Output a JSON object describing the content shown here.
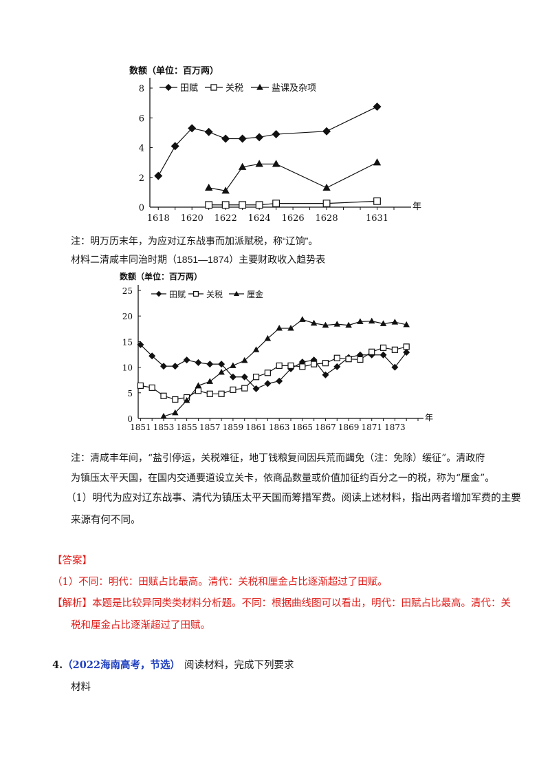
{
  "chart_data": [
    {
      "type": "line",
      "title": "",
      "ylabel": "数额（单位：百万两）",
      "xlabel": "年",
      "x_ticks": [
        "1618",
        "1620",
        "1622",
        "1624",
        "1626",
        "1628",
        "1631"
      ],
      "y_ticks": [
        "0",
        "2",
        "4",
        "6",
        "8"
      ],
      "xlim": [
        1617.5,
        1632
      ],
      "ylim": [
        0,
        8
      ],
      "grid": false,
      "legend_position": "top",
      "series": [
        {
          "name": "田赋",
          "marker": "filled-diamond",
          "points": [
            [
              1618,
              2.1
            ],
            [
              1619,
              4.1
            ],
            [
              1620,
              5.3
            ],
            [
              1621,
              5.05
            ],
            [
              1622,
              4.6
            ],
            [
              1623,
              4.6
            ],
            [
              1624,
              4.7
            ],
            [
              1625,
              4.9
            ],
            [
              1628,
              5.1
            ],
            [
              1631,
              6.75
            ]
          ]
        },
        {
          "name": "关税",
          "marker": "open-square",
          "points": [
            [
              1621,
              0.15
            ],
            [
              1622,
              0.15
            ],
            [
              1623,
              0.15
            ],
            [
              1624,
              0.15
            ],
            [
              1625,
              0.25
            ],
            [
              1628,
              0.25
            ],
            [
              1631,
              0.4
            ]
          ]
        },
        {
          "name": "盐课及杂项",
          "marker": "filled-triangle",
          "points": [
            [
              1621,
              1.3
            ],
            [
              1622,
              1.1
            ],
            [
              1623,
              2.7
            ],
            [
              1624,
              2.9
            ],
            [
              1625,
              2.9
            ],
            [
              1628,
              1.3
            ],
            [
              1631,
              3.0
            ]
          ]
        }
      ]
    },
    {
      "type": "line",
      "title": "",
      "ylabel": "数额（单位：百万两）",
      "xlabel": "年",
      "x_ticks": [
        "1851",
        "1853",
        "1855",
        "1857",
        "1859",
        "1861",
        "1863",
        "1865",
        "1867",
        "1869",
        "1871",
        "1873"
      ],
      "y_ticks": [
        "0",
        "5",
        "10",
        "15",
        "20",
        "25"
      ],
      "xlim": [
        1850.8,
        1875
      ],
      "ylim": [
        0,
        25
      ],
      "grid": false,
      "legend_position": "top",
      "series": [
        {
          "name": "田赋",
          "marker": "filled-diamond",
          "points": [
            [
              1851,
              14.4
            ],
            [
              1852,
              12.2
            ],
            [
              1853,
              10.2
            ],
            [
              1854,
              10.2
            ],
            [
              1855,
              11.4
            ],
            [
              1856,
              10.9
            ],
            [
              1857,
              10.6
            ],
            [
              1858,
              10.6
            ],
            [
              1859,
              8.1
            ],
            [
              1860,
              8.1
            ],
            [
              1861,
              5.8
            ],
            [
              1862,
              6.8
            ],
            [
              1863,
              7.3
            ],
            [
              1864,
              9.7
            ],
            [
              1865,
              11.0
            ],
            [
              1866,
              11.4
            ],
            [
              1867,
              8.5
            ],
            [
              1868,
              10.1
            ],
            [
              1869,
              11.9
            ],
            [
              1870,
              12.4
            ],
            [
              1871,
              12.4
            ],
            [
              1872,
              12.4
            ],
            [
              1873,
              10.0
            ],
            [
              1874,
              12.9
            ]
          ]
        },
        {
          "name": "关税",
          "marker": "open-square",
          "points": [
            [
              1851,
              6.4
            ],
            [
              1852,
              6.0
            ],
            [
              1853,
              4.4
            ],
            [
              1854,
              3.7
            ],
            [
              1855,
              4.1
            ],
            [
              1856,
              5.4
            ],
            [
              1857,
              4.8
            ],
            [
              1858,
              4.8
            ],
            [
              1859,
              5.6
            ],
            [
              1860,
              5.9
            ],
            [
              1861,
              8.1
            ],
            [
              1862,
              8.9
            ],
            [
              1863,
              10.3
            ],
            [
              1864,
              10.3
            ],
            [
              1865,
              10.1
            ],
            [
              1866,
              10.6
            ],
            [
              1867,
              10.8
            ],
            [
              1868,
              11.8
            ],
            [
              1869,
              11.6
            ],
            [
              1870,
              11.5
            ],
            [
              1871,
              13.0
            ],
            [
              1872,
              13.8
            ],
            [
              1873,
              13.4
            ],
            [
              1874,
              14.0
            ]
          ]
        },
        {
          "name": "厘金",
          "marker": "filled-triangle",
          "points": [
            [
              1853,
              0.4
            ],
            [
              1854,
              1.1
            ],
            [
              1855,
              3.5
            ],
            [
              1856,
              6.4
            ],
            [
              1857,
              7.2
            ],
            [
              1858,
              9.0
            ],
            [
              1859,
              10.3
            ],
            [
              1860,
              11.3
            ],
            [
              1861,
              13.4
            ],
            [
              1862,
              15.6
            ],
            [
              1863,
              17.6
            ],
            [
              1864,
              17.6
            ],
            [
              1865,
              19.3
            ],
            [
              1866,
              18.6
            ],
            [
              1867,
              18.2
            ],
            [
              1868,
              18.4
            ],
            [
              1869,
              18.2
            ],
            [
              1870,
              18.9
            ],
            [
              1871,
              19.0
            ],
            [
              1872,
              18.5
            ],
            [
              1873,
              18.8
            ],
            [
              1874,
              18.3
            ]
          ]
        }
      ]
    }
  ],
  "doc": {
    "note1": "注：明万历末年，为应对辽东战事而加派赋税，称“辽饷”。",
    "material2_title": "材料二清咸丰同治时期（1851—1874）主要财政收入趋势表",
    "note2_line1": "注：清咸丰年间，“盐引停运，关税难征，地丁钱粮复间因兵荒而蠲免（注：免除）缓征”。清政府",
    "note2_line2": "为镇压太平天国，在国内交通要道设立关卡，依商品数量或价值加征约百分之一的税，称为“厘金”。",
    "question_line1": "（1）明代为应对辽东战事、清代为镇压太平天国而筹措军费。阅读上述材料，指出两者增加军费的主要",
    "question_line2": "来源有何不同。",
    "answer_label": "【答案】",
    "answer_text": "（1）不同：明代：田赋占比最高。清代：关税和厘金占比逐渐超过了田赋。",
    "analysis_line1": "【解析】本题是比较异同类类材料分析题。不同：根据曲线图可以看出，明代：田赋占比最高。清代：关",
    "analysis_line2": "税和厘金占比逐渐超过了田赋。",
    "q4_number": "4.",
    "q4_source": "（2022海南高考，节选）",
    "q4_instruction": "阅读材料，完成下列要求",
    "q4_material": "材料"
  }
}
